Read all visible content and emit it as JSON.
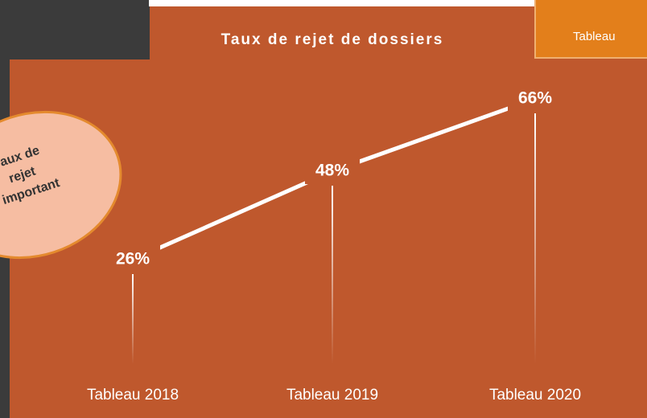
{
  "chart_data": {
    "type": "line",
    "title": "Taux de rejet de dossiers",
    "categories": [
      "Tableau 2018",
      "Tableau 2019",
      "Tableau 2020"
    ],
    "values": [
      26,
      48,
      66
    ],
    "value_labels": [
      "26%",
      "48%",
      "66%"
    ],
    "color": "#ffffff"
  },
  "callout": {
    "lines": [
      "Taux de",
      "rejet",
      "important"
    ]
  },
  "tab": {
    "label": "Tableau"
  }
}
